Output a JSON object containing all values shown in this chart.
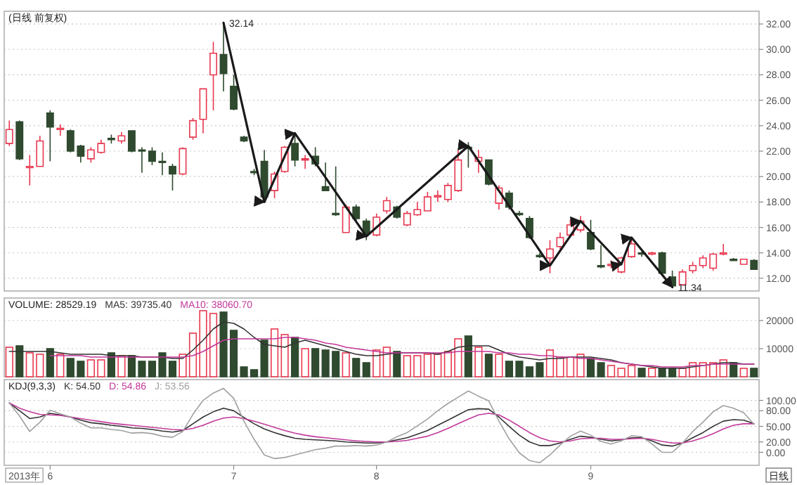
{
  "chart_data": [
    {
      "type": "candlestick",
      "title": "(日线 前复权)",
      "categories": [
        null,
        null,
        null,
        null,
        null,
        null,
        null,
        null,
        null,
        null,
        null,
        null,
        null,
        null,
        null,
        null,
        null,
        null,
        null,
        null,
        null,
        null,
        null,
        null,
        null,
        null,
        null,
        null,
        null,
        null,
        null,
        null,
        null,
        null,
        null,
        null,
        null,
        null,
        null,
        null,
        null,
        null,
        null,
        null,
        null,
        null,
        null,
        null,
        null,
        null,
        null,
        null,
        null,
        null,
        null,
        null,
        null,
        null,
        null,
        null,
        null,
        null,
        null,
        null,
        null,
        null,
        null,
        null,
        null,
        null,
        null,
        null,
        null,
        null
      ],
      "ohlc": [
        [
          22.6,
          24.4,
          22.4,
          23.7
        ],
        [
          24.3,
          24.4,
          21.3,
          21.4
        ],
        [
          20.7,
          21.7,
          19.3,
          20.8
        ],
        [
          20.8,
          23.2,
          20.8,
          22.8
        ],
        [
          25.0,
          25.2,
          21.2,
          23.9
        ],
        [
          23.7,
          24.1,
          23.2,
          23.8
        ],
        [
          23.6,
          23.7,
          21.9,
          22.0
        ],
        [
          22.4,
          22.5,
          21.1,
          21.6
        ],
        [
          21.4,
          22.3,
          21.1,
          22.1
        ],
        [
          21.9,
          22.9,
          21.8,
          22.6
        ],
        [
          23.0,
          23.3,
          22.6,
          22.9
        ],
        [
          22.8,
          23.5,
          22.6,
          23.2
        ],
        [
          23.6,
          23.6,
          21.9,
          22.0
        ],
        [
          22.1,
          22.3,
          20.3,
          22.0
        ],
        [
          22.0,
          22.3,
          20.9,
          21.2
        ],
        [
          21.2,
          21.9,
          20.1,
          21.1
        ],
        [
          20.8,
          21.0,
          18.9,
          20.2
        ],
        [
          20.2,
          22.3,
          20.1,
          22.2
        ],
        [
          23.1,
          24.6,
          22.9,
          24.4
        ],
        [
          24.5,
          26.9,
          23.4,
          26.9
        ],
        [
          28.0,
          30.6,
          25.2,
          29.7
        ],
        [
          29.6,
          32.14,
          26.7,
          28.1
        ],
        [
          27.1,
          28.0,
          25.2,
          25.3
        ],
        [
          23.1,
          23.2,
          22.7,
          22.8
        ],
        [
          20.4,
          20.6,
          20.1,
          20.3
        ],
        [
          21.2,
          22.1,
          18.0,
          18.4
        ],
        [
          18.9,
          20.4,
          18.3,
          20.2
        ],
        [
          20.4,
          22.4,
          20.3,
          22.3
        ],
        [
          22.6,
          23.5,
          20.8,
          21.3
        ],
        [
          21.3,
          21.7,
          20.6,
          21.4
        ],
        [
          21.6,
          22.3,
          20.8,
          21.0
        ],
        [
          19.2,
          21.1,
          18.9,
          18.9
        ],
        [
          17.1,
          20.8,
          16.9,
          17.0
        ],
        [
          15.6,
          17.8,
          15.6,
          17.6
        ],
        [
          17.6,
          17.8,
          16.5,
          16.7
        ],
        [
          16.5,
          16.7,
          15.0,
          15.5
        ],
        [
          15.4,
          17.1,
          15.3,
          16.8
        ],
        [
          17.3,
          18.4,
          17.1,
          18.1
        ],
        [
          17.6,
          17.7,
          16.7,
          16.8
        ],
        [
          16.2,
          17.3,
          16.1,
          17.1
        ],
        [
          17.0,
          18.0,
          16.9,
          17.4
        ],
        [
          17.3,
          18.8,
          17.3,
          18.4
        ],
        [
          18.4,
          18.9,
          18.0,
          18.5
        ],
        [
          18.2,
          19.5,
          18.0,
          19.3
        ],
        [
          18.9,
          22.1,
          18.8,
          21.3
        ],
        [
          22.3,
          22.7,
          20.7,
          22.2
        ],
        [
          21.2,
          22.1,
          20.3,
          21.5
        ],
        [
          21.3,
          21.3,
          19.3,
          19.4
        ],
        [
          17.9,
          19.3,
          17.4,
          19.1
        ],
        [
          18.7,
          18.9,
          17.4,
          17.6
        ],
        [
          17.1,
          17.3,
          16.9,
          17.0
        ],
        [
          16.7,
          16.9,
          15.1,
          15.2
        ],
        [
          13.8,
          14.0,
          13.6,
          13.7
        ],
        [
          13.6,
          15.0,
          12.4,
          14.3
        ],
        [
          14.5,
          15.6,
          14.3,
          15.2
        ],
        [
          15.4,
          16.6,
          15.2,
          16.2
        ],
        [
          15.8,
          16.9,
          15.6,
          16.5
        ],
        [
          15.6,
          16.6,
          14.2,
          14.3
        ],
        [
          13.0,
          14.6,
          12.8,
          12.9
        ],
        [
          13.0,
          13.4,
          12.8,
          13.1
        ],
        [
          12.5,
          13.7,
          12.4,
          13.6
        ],
        [
          13.7,
          15.2,
          13.6,
          14.7
        ],
        [
          14.0,
          14.1,
          13.7,
          13.9
        ],
        [
          13.9,
          14.1,
          13.8,
          14.0
        ],
        [
          14.0,
          14.1,
          12.3,
          12.4
        ],
        [
          12.1,
          12.6,
          11.34,
          11.4
        ],
        [
          11.5,
          12.7,
          11.4,
          12.5
        ],
        [
          12.6,
          13.3,
          12.4,
          13.0
        ],
        [
          13.0,
          13.8,
          12.8,
          13.6
        ],
        [
          12.8,
          14.0,
          12.6,
          13.9
        ],
        [
          13.9,
          14.7,
          13.8,
          14.0
        ],
        [
          13.5,
          13.6,
          13.4,
          13.4
        ],
        [
          13.1,
          13.5,
          13.1,
          13.5
        ],
        [
          13.4,
          13.5,
          12.7,
          12.7
        ]
      ],
      "colors": [
        "#e8384f",
        "#2f4a2f",
        "#e8384f",
        "#e8384f",
        "#2f4a2f",
        "#e8384f",
        "#2f4a2f",
        "#2f4a2f",
        "#e8384f",
        "#e8384f",
        "#2f4a2f",
        "#e8384f",
        "#2f4a2f",
        "#2f4a2f",
        "#2f4a2f",
        "#2f4a2f",
        "#2f4a2f",
        "#e8384f",
        "#e8384f",
        "#e8384f",
        "#e8384f",
        "#2f4a2f",
        "#2f4a2f",
        "#2f4a2f",
        "#2f4a2f",
        "#2f4a2f",
        "#e8384f",
        "#e8384f",
        "#2f4a2f",
        "#e8384f",
        "#2f4a2f",
        "#2f4a2f",
        "#2f4a2f",
        "#e8384f",
        "#2f4a2f",
        "#2f4a2f",
        "#e8384f",
        "#e8384f",
        "#2f4a2f",
        "#e8384f",
        "#e8384f",
        "#e8384f",
        "#e8384f",
        "#e8384f",
        "#e8384f",
        "#2f4a2f",
        "#e8384f",
        "#2f4a2f",
        "#e8384f",
        "#2f4a2f",
        "#2f4a2f",
        "#2f4a2f",
        "#2f4a2f",
        "#e8384f",
        "#e8384f",
        "#e8384f",
        "#e8384f",
        "#2f4a2f",
        "#2f4a2f",
        "#e8384f",
        "#e8384f",
        "#e8384f",
        "#2f4a2f",
        "#e8384f",
        "#2f4a2f",
        "#2f4a2f",
        "#e8384f",
        "#e8384f",
        "#e8384f",
        "#e8384f",
        "#e8384f",
        "#2f4a2f",
        "#e8384f",
        "#2f4a2f"
      ],
      "series": [
        {
          "type": "line",
          "color": "#1a1a1a",
          "values": [
            null,
            null,
            null,
            null,
            null,
            null,
            null,
            null,
            null,
            null,
            null,
            null,
            null,
            null,
            null,
            null,
            null,
            null,
            null,
            null,
            null,
            32.1,
            null,
            null,
            null,
            18.0,
            null,
            null,
            23.4,
            null,
            null,
            null,
            null,
            null,
            null,
            15.3,
            null,
            null,
            null,
            null,
            null,
            null,
            null,
            null,
            null,
            22.4,
            null,
            null,
            null,
            null,
            null,
            null,
            null,
            13.0,
            null,
            null,
            16.5,
            null,
            null,
            null,
            13.1,
            15.2,
            null,
            null,
            null,
            11.3,
            null,
            null,
            null,
            null,
            null,
            null,
            null,
            null
          ]
        }
      ],
      "annotations": [
        "32.14",
        "11.34"
      ],
      "ylim": [
        11,
        33
      ],
      "yticks": [
        {
          "value": 12,
          "label": "12.00"
        },
        {
          "value": 14,
          "label": "14.00"
        },
        {
          "value": 16,
          "label": "16.00"
        },
        {
          "value": 18,
          "label": "18.00"
        },
        {
          "value": 20,
          "label": "20.00"
        },
        {
          "value": 22,
          "label": "22.00"
        },
        {
          "value": 24,
          "label": "24.00"
        },
        {
          "value": 26,
          "label": "26.00"
        },
        {
          "value": 28,
          "label": "28.00"
        },
        {
          "value": 30,
          "label": "30.00"
        },
        {
          "value": 32,
          "label": "32.00"
        }
      ],
      "grid": "y",
      "tick_labels": "y"
    },
    {
      "type": "bar",
      "title": "VOLUME: 28529.19",
      "categories": [
        null,
        null,
        null,
        null,
        null,
        null,
        null,
        null,
        null,
        null,
        null,
        null,
        null,
        null,
        null,
        null,
        null,
        null,
        null,
        null,
        null,
        null,
        null,
        null,
        null,
        null,
        null,
        null,
        null,
        null,
        null,
        null,
        null,
        null,
        null,
        null,
        null,
        null,
        null,
        null,
        null,
        null,
        null,
        null,
        null,
        null,
        null,
        null,
        null,
        null,
        null,
        null,
        null,
        null,
        null,
        null,
        null,
        null,
        null,
        null,
        null,
        null,
        null,
        null,
        null,
        null,
        null,
        null,
        null,
        null,
        null,
        null,
        null,
        null
      ],
      "values": [
        10500,
        11000,
        8500,
        8000,
        10000,
        8000,
        6500,
        5500,
        6000,
        6000,
        8500,
        7500,
        7500,
        5500,
        5500,
        8500,
        5500,
        8000,
        15500,
        23500,
        22500,
        23000,
        16500,
        3500,
        2500,
        13000,
        17000,
        15000,
        14000,
        10000,
        10000,
        9500,
        9000,
        8500,
        6500,
        5000,
        9500,
        10500,
        9000,
        7500,
        7500,
        8000,
        8000,
        9000,
        13500,
        14500,
        10500,
        8000,
        8000,
        5500,
        5500,
        3500,
        5000,
        9500,
        7000,
        7000,
        8000,
        6500,
        5000,
        4000,
        3000,
        4000,
        3000,
        3000,
        3000,
        3000,
        3000,
        5000,
        5000,
        5000,
        6000,
        5000,
        3000,
        3000
      ],
      "colors": [
        "#e8384f",
        "#2f4a2f",
        "#e8384f",
        "#e8384f",
        "#2f4a2f",
        "#e8384f",
        "#2f4a2f",
        "#2f4a2f",
        "#e8384f",
        "#e8384f",
        "#2f4a2f",
        "#e8384f",
        "#2f4a2f",
        "#2f4a2f",
        "#2f4a2f",
        "#2f4a2f",
        "#2f4a2f",
        "#e8384f",
        "#e8384f",
        "#e8384f",
        "#e8384f",
        "#2f4a2f",
        "#2f4a2f",
        "#2f4a2f",
        "#2f4a2f",
        "#2f4a2f",
        "#e8384f",
        "#e8384f",
        "#2f4a2f",
        "#e8384f",
        "#2f4a2f",
        "#2f4a2f",
        "#2f4a2f",
        "#e8384f",
        "#2f4a2f",
        "#2f4a2f",
        "#e8384f",
        "#e8384f",
        "#2f4a2f",
        "#e8384f",
        "#e8384f",
        "#e8384f",
        "#e8384f",
        "#e8384f",
        "#e8384f",
        "#2f4a2f",
        "#e8384f",
        "#2f4a2f",
        "#e8384f",
        "#2f4a2f",
        "#2f4a2f",
        "#2f4a2f",
        "#2f4a2f",
        "#e8384f",
        "#e8384f",
        "#e8384f",
        "#e8384f",
        "#2f4a2f",
        "#2f4a2f",
        "#e8384f",
        "#e8384f",
        "#e8384f",
        "#2f4a2f",
        "#e8384f",
        "#2f4a2f",
        "#2f4a2f",
        "#e8384f",
        "#e8384f",
        "#e8384f",
        "#e8384f",
        "#e8384f",
        "#2f4a2f",
        "#e8384f",
        "#2f4a2f"
      ],
      "series": [
        {
          "type": "line",
          "name": "MA5: 39735.40",
          "color": "#333333",
          "values": [
            9000,
            9000,
            9000,
            9000,
            9000,
            8500,
            8000,
            8000,
            8000,
            8000,
            7500,
            7500,
            7500,
            7000,
            7000,
            7000,
            6500,
            6500,
            9500,
            13000,
            17000,
            19500,
            19000,
            17000,
            14000,
            11500,
            11000,
            10500,
            12000,
            13000,
            12000,
            11000,
            10000,
            9000,
            8000,
            7500,
            7500,
            8000,
            8500,
            8500,
            8500,
            8500,
            8000,
            9000,
            10500,
            11000,
            11000,
            11000,
            9500,
            8000,
            7000,
            6500,
            6000,
            6500,
            6500,
            7000,
            7000,
            7000,
            6500,
            6000,
            5000,
            4500,
            4000,
            3500,
            3000,
            3000,
            3000,
            3500,
            4000,
            4500,
            5000,
            5000,
            4500,
            4500
          ]
        },
        {
          "type": "line",
          "name": "MA10: 38060.70",
          "color": "#c2399b",
          "values": [
            null,
            null,
            null,
            null,
            7500,
            7500,
            7500,
            7500,
            7000,
            7000,
            7000,
            7000,
            7000,
            7000,
            7000,
            7000,
            7000,
            7000,
            7500,
            9000,
            11000,
            13000,
            13500,
            13500,
            13500,
            13500,
            13500,
            14000,
            14000,
            13500,
            13000,
            12000,
            11500,
            10500,
            10000,
            9500,
            9000,
            8500,
            8500,
            8500,
            8500,
            8500,
            8500,
            8500,
            9000,
            9000,
            9000,
            9000,
            8500,
            8500,
            8000,
            8000,
            7500,
            7500,
            7000,
            7000,
            6500,
            6500,
            6000,
            5500,
            5000,
            4500,
            4000,
            4000,
            3500,
            3500,
            3500,
            4000,
            4000,
            4500,
            4500,
            4500,
            4500,
            4500
          ]
        }
      ],
      "ylim": [
        0,
        28000
      ],
      "yticks": [
        10000,
        20000
      ],
      "grid": "y",
      "legend": "top left",
      "tick_labels": "y"
    },
    {
      "type": "line",
      "title": "KDJ(9,3,3)",
      "categories": [
        null,
        null,
        null,
        null,
        "6",
        null,
        null,
        null,
        null,
        null,
        null,
        null,
        null,
        null,
        null,
        null,
        null,
        null,
        null,
        null,
        null,
        null,
        "7",
        null,
        null,
        null,
        null,
        null,
        null,
        null,
        null,
        null,
        null,
        null,
        null,
        null,
        "8",
        null,
        null,
        null,
        null,
        null,
        null,
        null,
        null,
        null,
        null,
        null,
        null,
        null,
        null,
        null,
        null,
        null,
        null,
        null,
        null,
        "9",
        null,
        null,
        null,
        null,
        null,
        null,
        null,
        null,
        null,
        null,
        null,
        null,
        null,
        null,
        null,
        null
      ],
      "series": [
        {
          "name": "K: 54.50",
          "color": "#333333",
          "values": [
            95,
            80,
            65,
            68,
            75,
            72,
            68,
            62,
            57,
            55,
            52,
            50,
            47,
            46,
            44,
            41,
            39,
            42,
            55,
            68,
            78,
            85,
            80,
            67,
            55,
            45,
            38,
            32,
            27,
            25,
            24,
            23,
            22,
            20,
            19,
            18,
            18,
            20,
            24,
            28,
            35,
            42,
            52,
            62,
            72,
            82,
            84,
            83,
            68,
            50,
            33,
            20,
            13,
            13,
            18,
            25,
            31,
            29,
            25,
            22,
            24,
            28,
            28,
            22,
            14,
            12,
            18,
            28,
            38,
            50,
            60,
            63,
            62,
            55
          ]
        },
        {
          "name": "D: 54.86",
          "color": "#c2399b",
          "values": [
            95,
            85,
            78,
            73,
            72,
            71,
            68,
            65,
            62,
            59,
            56,
            54,
            52,
            50,
            48,
            46,
            44,
            43,
            46,
            52,
            60,
            66,
            68,
            65,
            60,
            54,
            48,
            42,
            37,
            33,
            30,
            28,
            26,
            24,
            22,
            21,
            20,
            20,
            21,
            23,
            27,
            31,
            38,
            46,
            55,
            64,
            72,
            75,
            72,
            62,
            50,
            38,
            28,
            22,
            20,
            22,
            26,
            27,
            27,
            25,
            25,
            26,
            27,
            25,
            21,
            18,
            18,
            22,
            28,
            36,
            45,
            52,
            55,
            55
          ]
        },
        {
          "name": "J: 53.56",
          "color": "#a0a0a0",
          "values": [
            95,
            70,
            40,
            58,
            81,
            74,
            68,
            56,
            47,
            47,
            44,
            42,
            37,
            38,
            36,
            31,
            29,
            40,
            73,
            100,
            114,
            123,
            104,
            60,
            25,
            -5,
            -12,
            -10,
            -5,
            0,
            5,
            8,
            12,
            12,
            13,
            12,
            14,
            20,
            30,
            38,
            51,
            64,
            80,
            94,
            106,
            118,
            108,
            99,
            60,
            26,
            -1,
            -16,
            -20,
            -5,
            14,
            31,
            41,
            33,
            21,
            16,
            22,
            32,
            30,
            16,
            0,
            0,
            18,
            40,
            58,
            78,
            90,
            85,
            76,
            54
          ]
        }
      ],
      "annotations": [
        "2013年",
        "日线"
      ],
      "ylim": [
        -25,
        140
      ],
      "yticks": [
        {
          "value": 0,
          "label": "0.00"
        },
        {
          "value": 20,
          "label": "20.00"
        },
        {
          "value": 50,
          "label": "50.00"
        },
        {
          "value": 80,
          "label": "80.00"
        },
        {
          "value": 100,
          "label": "100.00"
        }
      ],
      "grid": "y",
      "legend": "top left"
    }
  ]
}
